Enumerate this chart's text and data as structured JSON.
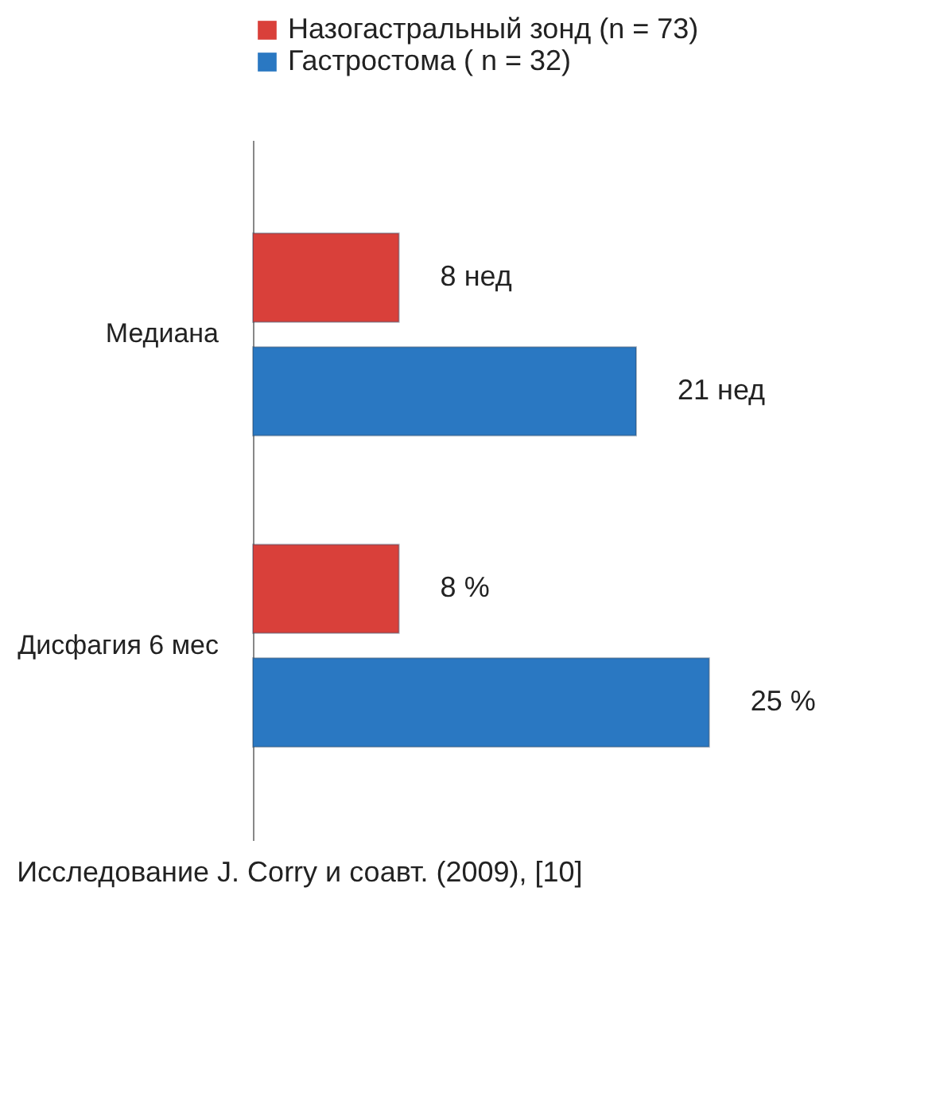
{
  "chart_data": {
    "type": "bar",
    "orientation": "horizontal",
    "legend": "top",
    "categories": [
      "Медиана",
      "Дисфагия 6 мес"
    ],
    "series": [
      {
        "name": "Назогастральный зонд (n = 73)",
        "color": "#d9403a",
        "values": [
          8,
          8
        ],
        "value_labels": [
          "8 нед",
          "8 %"
        ]
      },
      {
        "name": "Гастростома ( n = 32)",
        "color": "#2a78c2",
        "values": [
          21,
          25
        ],
        "value_labels": [
          "21  нед",
          "25 %"
        ]
      }
    ],
    "annotations": [
      "Исследование  J. Corry и соавт. (2009), [10]"
    ]
  }
}
